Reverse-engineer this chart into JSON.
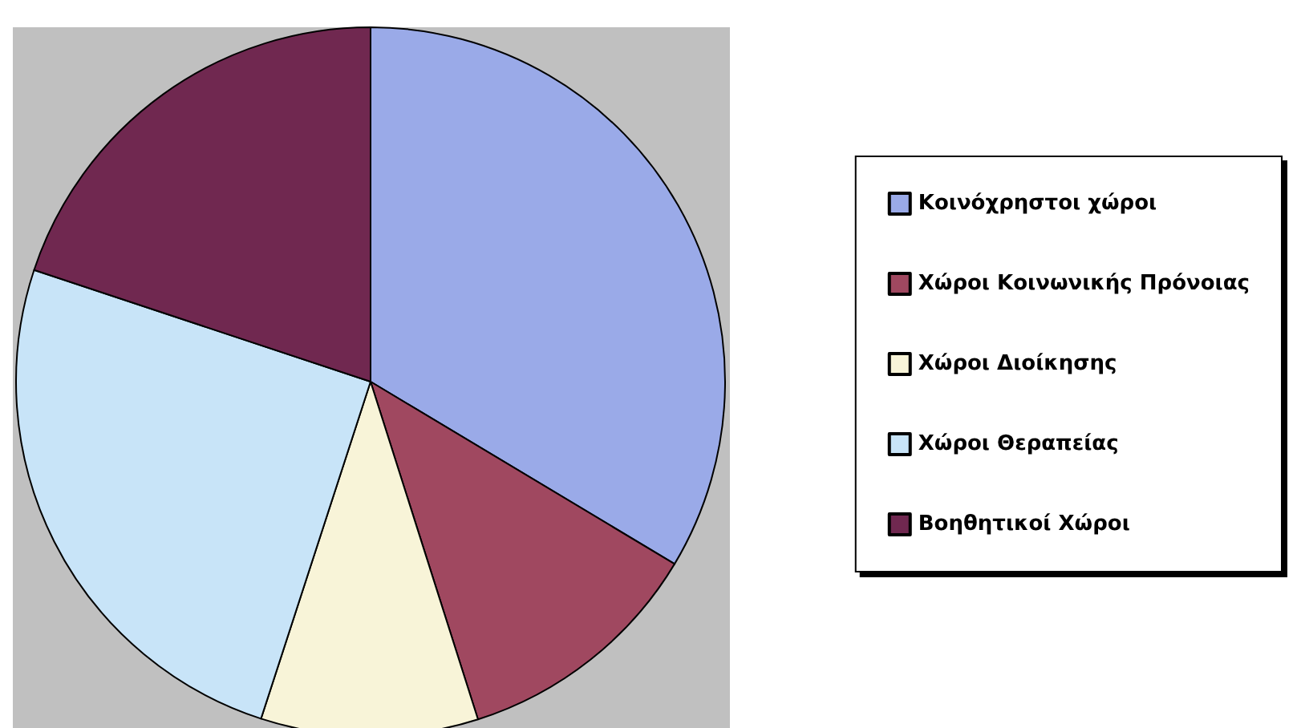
{
  "chart_data": {
    "type": "pie",
    "categories": [
      "Κοινόχρηστοι χώροι",
      "Χώροι Κοινωνικής Πρόνοιας",
      "Χώροι Διοίκησης",
      "Χώροι Θεραπείας",
      "Βοηθητικοί Χώροι"
    ],
    "values": [
      33.6,
      11.5,
      9.9,
      25.1,
      19.9
    ],
    "colors": [
      "#9aaae8",
      "#a04860",
      "#f8f4d8",
      "#c8e4f8",
      "#702850"
    ],
    "legend": "right"
  }
}
